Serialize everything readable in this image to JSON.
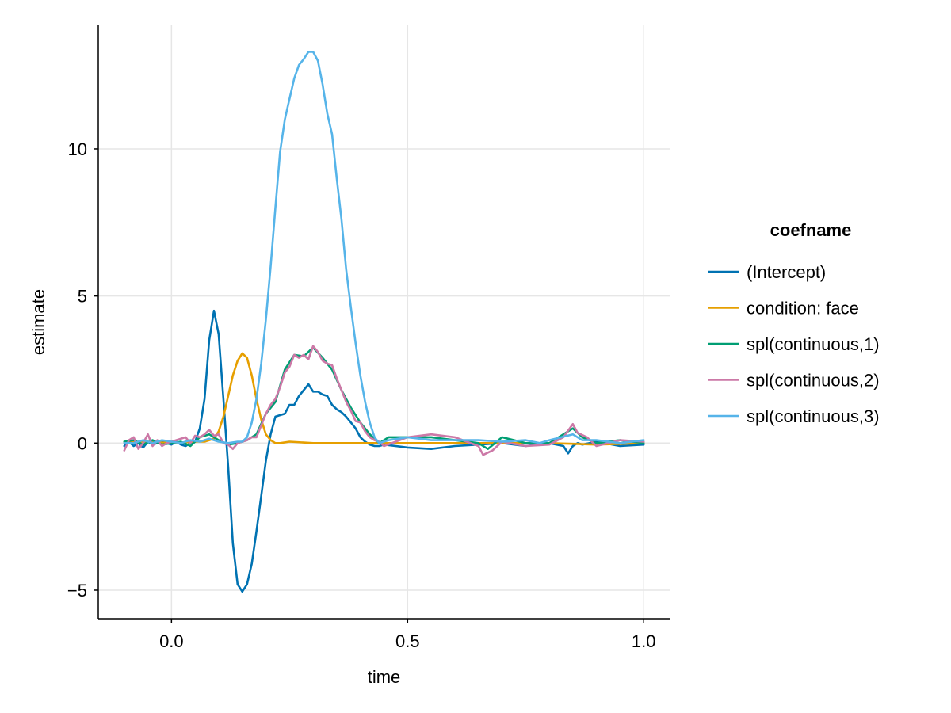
{
  "chart_data": {
    "type": "line",
    "title": "",
    "xlabel": "time",
    "ylabel": "estimate",
    "xlim": [
      -0.155,
      1.055
    ],
    "ylim": [
      -5.97,
      14.2
    ],
    "xticks": [
      0.0,
      0.5,
      1.0
    ],
    "xtick_labels": [
      "0.0",
      "0.5",
      "1.0"
    ],
    "yticks": [
      -5,
      0,
      5,
      10
    ],
    "ytick_labels": [
      "−5",
      "0",
      "5",
      "10"
    ],
    "grid": true,
    "legend": {
      "title": "coefname",
      "position": "right"
    },
    "series": [
      {
        "name": "(Intercept)",
        "color": "#0072B2",
        "x": [
          -0.1,
          -0.09,
          -0.08,
          -0.07,
          -0.06,
          -0.05,
          -0.04,
          -0.03,
          -0.02,
          -0.01,
          0.0,
          0.01,
          0.02,
          0.03,
          0.04,
          0.05,
          0.06,
          0.07,
          0.08,
          0.09,
          0.1,
          0.11,
          0.12,
          0.13,
          0.14,
          0.15,
          0.16,
          0.17,
          0.18,
          0.19,
          0.2,
          0.21,
          0.22,
          0.23,
          0.24,
          0.25,
          0.26,
          0.27,
          0.28,
          0.29,
          0.3,
          0.31,
          0.32,
          0.33,
          0.34,
          0.35,
          0.36,
          0.37,
          0.38,
          0.39,
          0.4,
          0.41,
          0.42,
          0.43,
          0.44,
          0.45,
          0.5,
          0.55,
          0.6,
          0.65,
          0.7,
          0.75,
          0.8,
          0.83,
          0.84,
          0.85,
          0.86,
          0.87,
          0.9,
          0.95,
          1.0
        ],
        "y": [
          -0.1,
          0.05,
          -0.1,
          0.0,
          -0.15,
          0.05,
          -0.05,
          0.0,
          0.05,
          0.0,
          -0.05,
          0.05,
          -0.05,
          -0.1,
          0.0,
          0.05,
          0.5,
          1.5,
          3.5,
          4.5,
          3.7,
          1.5,
          -0.8,
          -3.4,
          -4.8,
          -5.05,
          -4.8,
          -4.1,
          -3.0,
          -1.8,
          -0.6,
          0.3,
          0.9,
          0.95,
          1.0,
          1.3,
          1.3,
          1.6,
          1.8,
          2.0,
          1.75,
          1.75,
          1.65,
          1.6,
          1.3,
          1.15,
          1.05,
          0.9,
          0.7,
          0.5,
          0.2,
          0.05,
          -0.05,
          -0.1,
          -0.1,
          -0.05,
          -0.15,
          -0.2,
          -0.1,
          -0.05,
          0.0,
          -0.1,
          0.0,
          -0.1,
          -0.35,
          -0.1,
          0.0,
          -0.05,
          0.05,
          -0.1,
          -0.05
        ]
      },
      {
        "name": "condition: face",
        "color": "#E69F00",
        "x": [
          -0.1,
          -0.05,
          0.0,
          0.05,
          0.07,
          0.09,
          0.1,
          0.11,
          0.12,
          0.13,
          0.14,
          0.15,
          0.16,
          0.17,
          0.18,
          0.19,
          0.2,
          0.21,
          0.22,
          0.23,
          0.25,
          0.3,
          0.35,
          0.4,
          0.45,
          0.5,
          0.6,
          0.7,
          0.8,
          0.9,
          1.0
        ],
        "y": [
          0.05,
          0.05,
          0.0,
          0.05,
          0.05,
          0.15,
          0.4,
          0.9,
          1.6,
          2.3,
          2.8,
          3.05,
          2.9,
          2.3,
          1.5,
          0.8,
          0.3,
          0.1,
          0.0,
          0.0,
          0.05,
          0.0,
          0.0,
          0.0,
          0.0,
          0.0,
          0.0,
          0.0,
          0.0,
          -0.05,
          0.0
        ]
      },
      {
        "name": "spl(continuous,1)",
        "color": "#009E73",
        "x": [
          -0.1,
          -0.08,
          -0.06,
          -0.04,
          -0.02,
          0.0,
          0.02,
          0.04,
          0.06,
          0.08,
          0.1,
          0.12,
          0.14,
          0.16,
          0.18,
          0.2,
          0.22,
          0.24,
          0.26,
          0.28,
          0.3,
          0.32,
          0.34,
          0.36,
          0.38,
          0.4,
          0.42,
          0.44,
          0.46,
          0.5,
          0.55,
          0.6,
          0.65,
          0.67,
          0.7,
          0.75,
          0.8,
          0.85,
          0.87,
          0.9,
          0.95,
          1.0
        ],
        "y": [
          0.05,
          0.1,
          -0.05,
          0.1,
          -0.05,
          0.0,
          0.05,
          -0.1,
          0.2,
          0.3,
          0.1,
          -0.05,
          0.0,
          0.1,
          0.3,
          1.0,
          1.4,
          2.5,
          3.0,
          2.95,
          3.25,
          2.9,
          2.5,
          1.8,
          1.2,
          0.7,
          0.3,
          0.0,
          0.2,
          0.2,
          0.2,
          0.1,
          0.0,
          -0.2,
          0.2,
          0.0,
          0.0,
          0.5,
          0.2,
          0.0,
          0.1,
          0.0
        ]
      },
      {
        "name": "spl(continuous,2)",
        "color": "#CC79A7",
        "x": [
          -0.1,
          -0.09,
          -0.08,
          -0.07,
          -0.06,
          -0.05,
          -0.04,
          -0.03,
          -0.02,
          -0.01,
          0.0,
          0.01,
          0.02,
          0.03,
          0.04,
          0.05,
          0.06,
          0.07,
          0.08,
          0.09,
          0.1,
          0.11,
          0.12,
          0.13,
          0.14,
          0.15,
          0.16,
          0.17,
          0.18,
          0.19,
          0.2,
          0.21,
          0.22,
          0.23,
          0.24,
          0.25,
          0.26,
          0.27,
          0.28,
          0.29,
          0.3,
          0.31,
          0.32,
          0.33,
          0.34,
          0.35,
          0.36,
          0.37,
          0.38,
          0.39,
          0.4,
          0.41,
          0.42,
          0.43,
          0.44,
          0.45,
          0.5,
          0.55,
          0.6,
          0.65,
          0.66,
          0.68,
          0.7,
          0.75,
          0.8,
          0.83,
          0.85,
          0.86,
          0.88,
          0.9,
          0.95,
          1.0
        ],
        "y": [
          -0.25,
          0.1,
          0.2,
          -0.2,
          0.0,
          0.3,
          -0.1,
          0.1,
          -0.1,
          0.0,
          0.05,
          0.1,
          0.15,
          0.2,
          0.0,
          0.25,
          0.2,
          0.3,
          0.45,
          0.25,
          0.3,
          0.0,
          -0.05,
          -0.2,
          0.0,
          0.05,
          0.1,
          0.2,
          0.2,
          0.6,
          1.0,
          1.3,
          1.5,
          1.9,
          2.4,
          2.6,
          3.0,
          2.9,
          3.0,
          2.85,
          3.3,
          3.1,
          2.8,
          2.7,
          2.65,
          2.2,
          1.8,
          1.4,
          1.1,
          0.75,
          0.7,
          0.4,
          0.2,
          0.1,
          0.05,
          -0.1,
          0.2,
          0.3,
          0.2,
          -0.1,
          -0.4,
          -0.25,
          0.05,
          -0.1,
          -0.05,
          0.2,
          0.65,
          0.35,
          0.2,
          -0.1,
          0.1,
          0.05
        ]
      },
      {
        "name": "spl(continuous,3)",
        "color": "#56B4E9",
        "x": [
          -0.1,
          -0.08,
          -0.06,
          -0.04,
          -0.02,
          0.0,
          0.02,
          0.04,
          0.06,
          0.08,
          0.1,
          0.12,
          0.14,
          0.15,
          0.16,
          0.17,
          0.18,
          0.19,
          0.2,
          0.21,
          0.22,
          0.23,
          0.24,
          0.25,
          0.26,
          0.27,
          0.28,
          0.29,
          0.3,
          0.31,
          0.32,
          0.33,
          0.34,
          0.35,
          0.36,
          0.37,
          0.38,
          0.39,
          0.4,
          0.41,
          0.42,
          0.43,
          0.44,
          0.46,
          0.5,
          0.55,
          0.6,
          0.65,
          0.7,
          0.75,
          0.78,
          0.8,
          0.85,
          0.87,
          0.9,
          0.95,
          1.0
        ],
        "y": [
          0.0,
          0.0,
          0.1,
          0.0,
          0.1,
          0.05,
          0.0,
          0.1,
          0.05,
          0.15,
          0.05,
          0.0,
          0.05,
          0.05,
          0.2,
          0.7,
          1.5,
          2.7,
          4.2,
          6.0,
          8.0,
          9.9,
          11.0,
          11.7,
          12.4,
          12.85,
          13.05,
          13.3,
          13.3,
          13.0,
          12.2,
          11.2,
          10.5,
          9.0,
          7.6,
          5.9,
          4.6,
          3.4,
          2.3,
          1.4,
          0.7,
          0.2,
          0.0,
          0.1,
          0.2,
          0.1,
          0.1,
          0.1,
          0.05,
          0.1,
          0.0,
          0.1,
          0.3,
          0.1,
          0.1,
          0.0,
          0.1
        ]
      }
    ]
  }
}
